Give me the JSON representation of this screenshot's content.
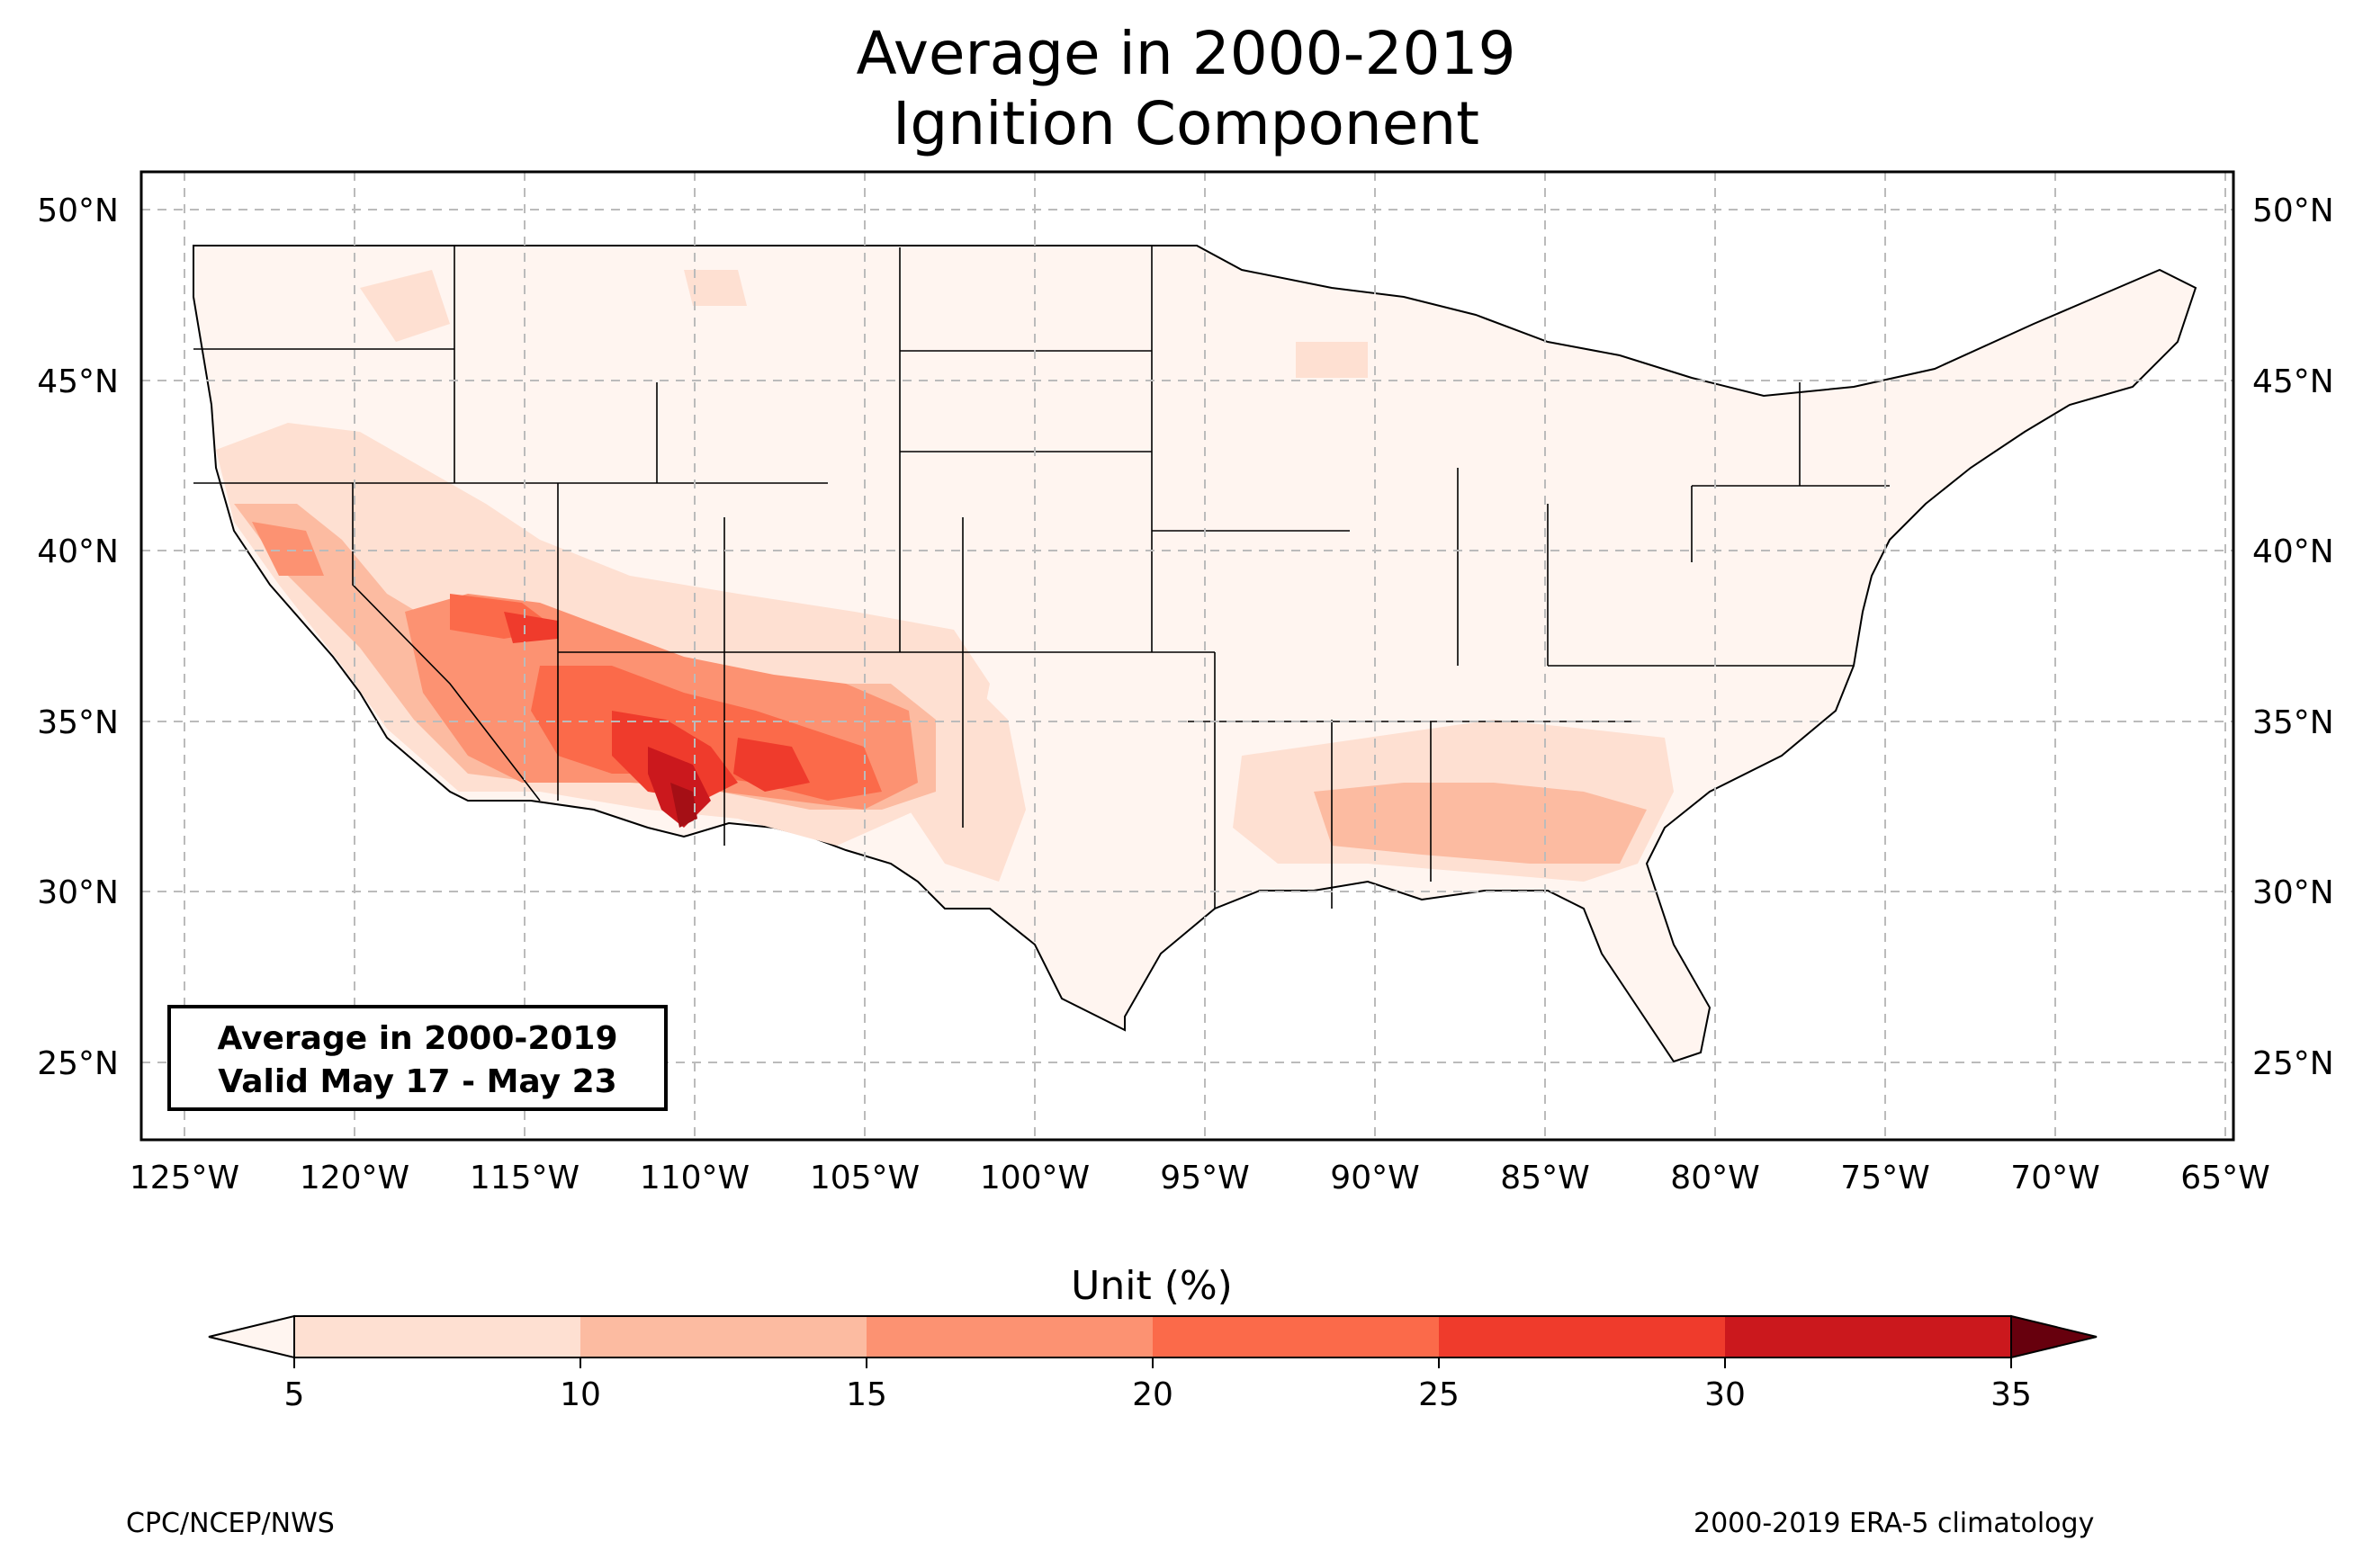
{
  "title": {
    "line1": "Average in 2000-2019",
    "line2": "Ignition Component"
  },
  "info_box": {
    "line1": "Average in 2000-2019",
    "line2": "Valid May 17 - May 23"
  },
  "lat_ticks": [
    "50°N",
    "45°N",
    "40°N",
    "35°N",
    "30°N",
    "25°N"
  ],
  "lon_ticks": [
    "125°W",
    "120°W",
    "115°W",
    "110°W",
    "105°W",
    "100°W",
    "95°W",
    "90°W",
    "85°W",
    "80°W",
    "75°W",
    "70°W",
    "65°W"
  ],
  "colorbar": {
    "label": "Unit (%)",
    "ticks": [
      "5",
      "10",
      "15",
      "20",
      "25",
      "30",
      "35"
    ],
    "colors": [
      "#fee0d2",
      "#fcbba1",
      "#fc9272",
      "#fb6a4a",
      "#ef3b2c",
      "#cb181d",
      "#a50f15"
    ],
    "under_color": "#fff5f0",
    "over_color": "#67000d"
  },
  "credits": {
    "left": "CPC/NCEP/NWS",
    "right": "2000-2019 ERA-5 climatology"
  }
}
